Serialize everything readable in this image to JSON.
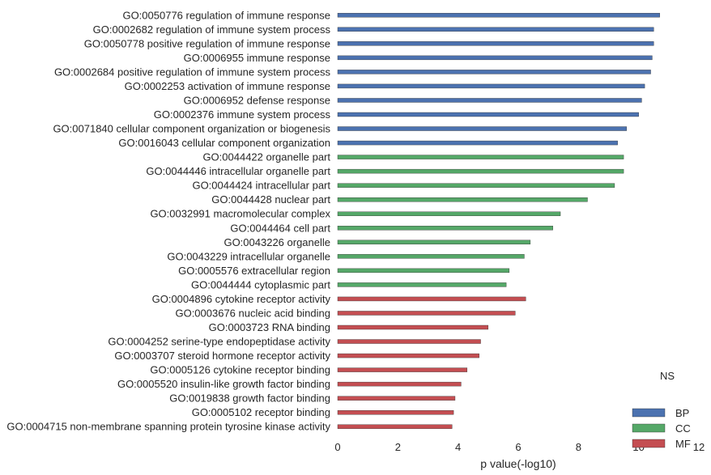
{
  "chart_data": {
    "type": "bar",
    "orientation": "horizontal",
    "xlabel": "p value(-log10)",
    "xlim": [
      0,
      12
    ],
    "xticks": [
      "0",
      "2",
      "4",
      "6",
      "8",
      "10",
      "12"
    ],
    "grid": false,
    "legend": {
      "title": "NS",
      "placement": "bottom-right",
      "entries": [
        {
          "name": "BP",
          "color": "#4c72b0"
        },
        {
          "name": "CC",
          "color": "#55a868"
        },
        {
          "name": "MF",
          "color": "#c44e52"
        }
      ]
    },
    "bars": [
      {
        "category": "GO:0050776 regulation of immune response",
        "group": "BP",
        "value": 10.7
      },
      {
        "category": "GO:0002682 regulation of immune system process",
        "group": "BP",
        "value": 10.5
      },
      {
        "category": "GO:0050778 positive regulation of immune response",
        "group": "BP",
        "value": 10.5
      },
      {
        "category": "GO:0006955 immune response",
        "group": "BP",
        "value": 10.45
      },
      {
        "category": "GO:0002684 positive regulation of immune system process",
        "group": "BP",
        "value": 10.4
      },
      {
        "category": "GO:0002253 activation of immune response",
        "group": "BP",
        "value": 10.2
      },
      {
        "category": "GO:0006952 defense response",
        "group": "BP",
        "value": 10.1
      },
      {
        "category": "GO:0002376 immune system process",
        "group": "BP",
        "value": 10.0
      },
      {
        "category": "GO:0071840 cellular component organization or biogenesis",
        "group": "BP",
        "value": 9.6
      },
      {
        "category": "GO:0016043 cellular component organization",
        "group": "BP",
        "value": 9.3
      },
      {
        "category": "GO:0044422 organelle part",
        "group": "CC",
        "value": 9.5
      },
      {
        "category": "GO:0044446 intracellular organelle part",
        "group": "CC",
        "value": 9.5
      },
      {
        "category": "GO:0044424 intracellular part",
        "group": "CC",
        "value": 9.2
      },
      {
        "category": "GO:0044428 nuclear part",
        "group": "CC",
        "value": 8.3
      },
      {
        "category": "GO:0032991 macromolecular complex",
        "group": "CC",
        "value": 7.4
      },
      {
        "category": "GO:0044464 cell part",
        "group": "CC",
        "value": 7.15
      },
      {
        "category": "GO:0043226 organelle",
        "group": "CC",
        "value": 6.4
      },
      {
        "category": "GO:0043229 intracellular organelle",
        "group": "CC",
        "value": 6.2
      },
      {
        "category": "GO:0005576 extracellular region",
        "group": "CC",
        "value": 5.7
      },
      {
        "category": "GO:0044444 cytoplasmic part",
        "group": "CC",
        "value": 5.6
      },
      {
        "category": "GO:0004896 cytokine receptor activity",
        "group": "MF",
        "value": 6.25
      },
      {
        "category": "GO:0003676 nucleic acid binding",
        "group": "MF",
        "value": 5.9
      },
      {
        "category": "GO:0003723 RNA binding",
        "group": "MF",
        "value": 5.0
      },
      {
        "category": "GO:0004252 serine-type endopeptidase activity",
        "group": "MF",
        "value": 4.75
      },
      {
        "category": "GO:0003707 steroid hormone receptor activity",
        "group": "MF",
        "value": 4.7
      },
      {
        "category": "GO:0005126 cytokine receptor binding",
        "group": "MF",
        "value": 4.3
      },
      {
        "category": "GO:0005520 insulin-like growth factor binding",
        "group": "MF",
        "value": 4.1
      },
      {
        "category": "GO:0019838 growth factor binding",
        "group": "MF",
        "value": 3.9
      },
      {
        "category": "GO:0005102 receptor binding",
        "group": "MF",
        "value": 3.85
      },
      {
        "category": "GO:0004715 non-membrane spanning protein tyrosine kinase activity",
        "group": "MF",
        "value": 3.8
      }
    ]
  }
}
